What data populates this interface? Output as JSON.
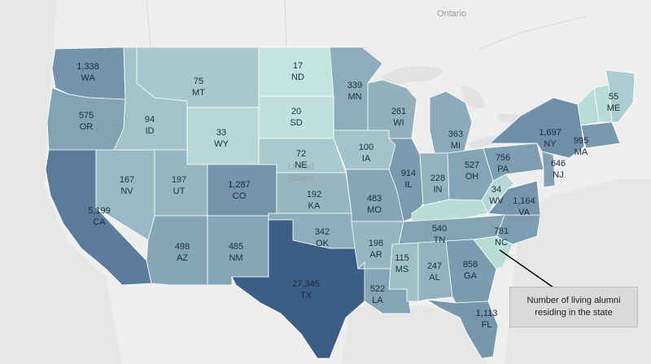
{
  "legend": {
    "annotation_lines": [
      "Number of living alumni",
      "residing in the state"
    ]
  },
  "basemap": {
    "labels": [
      "Ontario",
      "United",
      "States"
    ]
  },
  "colors": {
    "background": "#eeeeee",
    "water": "#e4e4e4",
    "scale_light": "#c3e3de",
    "scale_dark": "#3b5d86",
    "border": "#ffffff"
  },
  "chart_data": {
    "type": "choropleth",
    "regions": [
      {
        "state": "WA",
        "value": 1338,
        "value_label": "1,338"
      },
      {
        "state": "OR",
        "value": 575,
        "value_label": "575"
      },
      {
        "state": "CA",
        "value": 5199,
        "value_label": "5,199"
      },
      {
        "state": "NV",
        "value": 167,
        "value_label": "167"
      },
      {
        "state": "ID",
        "value": 94,
        "value_label": "94"
      },
      {
        "state": "MT",
        "value": 75,
        "value_label": "75"
      },
      {
        "state": "WY",
        "value": 33,
        "value_label": "33"
      },
      {
        "state": "UT",
        "value": 197,
        "value_label": "197"
      },
      {
        "state": "AZ",
        "value": 498,
        "value_label": "498"
      },
      {
        "state": "CO",
        "value": 1287,
        "value_label": "1,287"
      },
      {
        "state": "NM",
        "value": 485,
        "value_label": "485"
      },
      {
        "state": "ND",
        "value": 17,
        "value_label": "17"
      },
      {
        "state": "SD",
        "value": 20,
        "value_label": "20"
      },
      {
        "state": "NE",
        "value": 72,
        "value_label": "72"
      },
      {
        "state": "KA",
        "value": 192,
        "value_label": "192"
      },
      {
        "state": "OK",
        "value": 342,
        "value_label": "342"
      },
      {
        "state": "TX",
        "value": 27345,
        "value_label": "27,345"
      },
      {
        "state": "MN",
        "value": 339,
        "value_label": "339"
      },
      {
        "state": "IA",
        "value": 100,
        "value_label": "100"
      },
      {
        "state": "MO",
        "value": 483,
        "value_label": "483"
      },
      {
        "state": "AR",
        "value": 198,
        "value_label": "198"
      },
      {
        "state": "LA",
        "value": 522,
        "value_label": "522"
      },
      {
        "state": "WI",
        "value": 261,
        "value_label": "261"
      },
      {
        "state": "IL",
        "value": 914,
        "value_label": "914"
      },
      {
        "state": "MI",
        "value": 363,
        "value_label": "363"
      },
      {
        "state": "IN",
        "value": 228,
        "value_label": "228"
      },
      {
        "state": "OH",
        "value": 527,
        "value_label": "527"
      },
      {
        "state": "KY",
        "value": null,
        "value_label": ""
      },
      {
        "state": "TN",
        "value": 540,
        "value_label": "540"
      },
      {
        "state": "MS",
        "value": 115,
        "value_label": "115"
      },
      {
        "state": "AL",
        "value": 247,
        "value_label": "247"
      },
      {
        "state": "GA",
        "value": 858,
        "value_label": "858"
      },
      {
        "state": "FL",
        "value": 1113,
        "value_label": "1,113"
      },
      {
        "state": "SC",
        "value": null,
        "value_label": ""
      },
      {
        "state": "NC",
        "value": 781,
        "value_label": "781"
      },
      {
        "state": "VA",
        "value": 1164,
        "value_label": "1,164"
      },
      {
        "state": "WV",
        "value": 34,
        "value_label": "34"
      },
      {
        "state": "PA",
        "value": 756,
        "value_label": "756"
      },
      {
        "state": "NY",
        "value": 1697,
        "value_label": "1,697"
      },
      {
        "state": "NJ",
        "value": 646,
        "value_label": "646"
      },
      {
        "state": "MA",
        "value": 995,
        "value_label": "995"
      },
      {
        "state": "ME",
        "value": 55,
        "value_label": "55"
      },
      {
        "state": "VT",
        "value": null,
        "value_label": ""
      },
      {
        "state": "NH",
        "value": null,
        "value_label": ""
      }
    ]
  }
}
